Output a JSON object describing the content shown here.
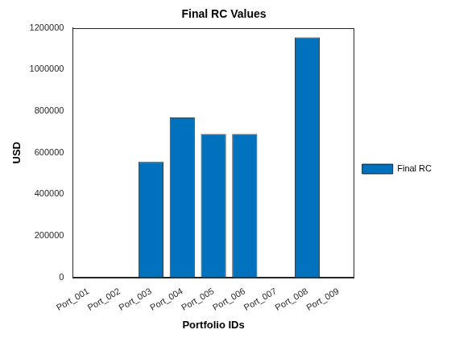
{
  "chart_data": {
    "type": "bar",
    "title": "Final RC Values",
    "xlabel": "Portfolio IDs",
    "ylabel": "USD",
    "categories": [
      "Port_001",
      "Port_002",
      "Port_003",
      "Port_004",
      "Port_005",
      "Port_006",
      "Port_007",
      "Port_008",
      "Port_009"
    ],
    "series": [
      {
        "name": "Final RC",
        "color": "#0072bd",
        "values": [
          0,
          0,
          555000,
          770000,
          690000,
          690000,
          0,
          1155000,
          0
        ]
      }
    ],
    "ylim": [
      0,
      1200000
    ],
    "yticks": [
      0,
      200000,
      400000,
      600000,
      800000,
      1000000,
      1200000
    ],
    "grid": false,
    "legend": "right"
  }
}
